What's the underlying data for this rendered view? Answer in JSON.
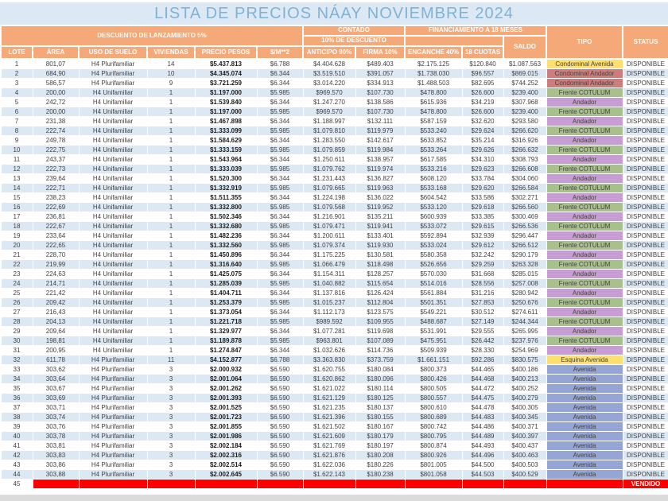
{
  "title": "LISTA DE PRECIOS NÁAY NOVIEMBRE 2024",
  "header": {
    "discount_banner": "DESCUENTO DE LANZAMIENTO 5%",
    "contado": "CONTADO",
    "contado_sub": "10% DE DESCUENTO",
    "financiamiento": "FINANCIAMIENTO A 18 MESES",
    "columns": [
      "LOTE",
      "ÁREA",
      "USO DE SUELO",
      "VIVIENDAS",
      "PRECIO PESOS",
      "$/M**2",
      "ANTICIPO 90%",
      "FIRMA 10%",
      "ENGANCHE 40%",
      "18 CUOTAS",
      "SALDO",
      "TIPO",
      "STATUS"
    ]
  },
  "colors": {
    "header_orange": "#F5A878",
    "band_blue": "#DCE9F5",
    "title_blue": "#7FB2D8",
    "sold_red": "#FF0000"
  },
  "tipo_colors": {
    "Condominal Avenida": "#FFE06E",
    "Condominal Andador": "#CF7C7F",
    "Frente COTULUM": "#A9BF8D",
    "Andador": "#C89DD6",
    "Esquina Avenida": "#FFE06E",
    "Avenida": "#95A5D6"
  },
  "rows": [
    [
      "1",
      "801,07",
      "H4 Plurifamiliar",
      "14",
      "$5.437.813",
      "$6.788",
      "$4.404.628",
      "$489.403",
      "$2.175.125",
      "$120.840",
      "$1.087.563",
      "Condominal Avenida",
      "DISPONIBLE"
    ],
    [
      "2",
      "684,90",
      "H4 Plurifamiliar",
      "10",
      "$4.345.074",
      "$6.344",
      "$3.519.510",
      "$391.057",
      "$1.738.030",
      "$96.557",
      "$869.015",
      "Condominal Andador",
      "DISPONIBLE"
    ],
    [
      "3",
      "586,57",
      "H4 Plurifamiliar",
      "9",
      "$3.721.259",
      "$6.344",
      "$3.014.220",
      "$334.913",
      "$1.488.503",
      "$82.695",
      "$744.252",
      "Condominal Andador",
      "DISPONIBLE"
    ],
    [
      "4",
      "200,00",
      "H4 Unifamiliar",
      "1",
      "$1.197.000",
      "$5.985",
      "$969.570",
      "$107.730",
      "$478.800",
      "$26.600",
      "$239.400",
      "Frente COTULUM",
      "DISPONIBLE"
    ],
    [
      "5",
      "242,72",
      "H4 Unifamiliar",
      "1",
      "$1.539.840",
      "$6.344",
      "$1.247.270",
      "$138.586",
      "$615.936",
      "$34.219",
      "$307.968",
      "Andador",
      "DISPONIBLE"
    ],
    [
      "6",
      "200,00",
      "H4 Unifamiliar",
      "1",
      "$1.197.000",
      "$5.985",
      "$969.570",
      "$107.730",
      "$478.800",
      "$26.600",
      "$239.400",
      "Frente COTULUM",
      "DISPONIBLE"
    ],
    [
      "7",
      "231,38",
      "H4 Unifamiliar",
      "1",
      "$1.467.898",
      "$6.344",
      "$1.188.997",
      "$132.111",
      "$587.159",
      "$32.620",
      "$293.580",
      "Andador",
      "DISPONIBLE"
    ],
    [
      "8",
      "222,74",
      "H4 Unifamiliar",
      "1",
      "$1.333.099",
      "$5.985",
      "$1.079.810",
      "$119.979",
      "$533.240",
      "$29.624",
      "$266.620",
      "Frente COTULUM",
      "DISPONIBLE"
    ],
    [
      "9",
      "249,78",
      "H4 Unifamiliar",
      "1",
      "$1.584.629",
      "$6.344",
      "$1.283.550",
      "$142.617",
      "$633.852",
      "$35.214",
      "$316.926",
      "Andador",
      "DISPONIBLE"
    ],
    [
      "10",
      "222,75",
      "H4 Unifamiliar",
      "1",
      "$1.333.159",
      "$5.985",
      "$1.079.859",
      "$119.984",
      "$533.264",
      "$29.626",
      "$266.632",
      "Frente COTULUM",
      "DISPONIBLE"
    ],
    [
      "11",
      "243,37",
      "H4 Unifamiliar",
      "1",
      "$1.543.964",
      "$6.344",
      "$1.250.611",
      "$138.957",
      "$617.585",
      "$34.310",
      "$308.793",
      "Andador",
      "DISPONIBLE"
    ],
    [
      "12",
      "222,73",
      "H4 Unifamiliar",
      "1",
      "$1.333.039",
      "$5.985",
      "$1.079.762",
      "$119.974",
      "$533.216",
      "$29.623",
      "$266.608",
      "Frente COTULUM",
      "DISPONIBLE"
    ],
    [
      "13",
      "239,64",
      "H4 Unifamiliar",
      "1",
      "$1.520.300",
      "$6.344",
      "$1.231.443",
      "$136.827",
      "$608.120",
      "$33.784",
      "$304.060",
      "Andador",
      "DISPONIBLE"
    ],
    [
      "14",
      "222,71",
      "H4 Unifamiliar",
      "1",
      "$1.332.919",
      "$5.985",
      "$1.079.665",
      "$119.963",
      "$533.168",
      "$29.620",
      "$266.584",
      "Frente COTULUM",
      "DISPONIBLE"
    ],
    [
      "15",
      "238,23",
      "H4 Unifamiliar",
      "1",
      "$1.511.355",
      "$6.344",
      "$1.224.198",
      "$136.022",
      "$604.542",
      "$33.586",
      "$302.271",
      "Andador",
      "DISPONIBLE"
    ],
    [
      "16",
      "222,69",
      "H4 Unifamiliar",
      "1",
      "$1.332.800",
      "$5.985",
      "$1.079.568",
      "$119.952",
      "$533.120",
      "$29.618",
      "$266.560",
      "Frente COTULUM",
      "DISPONIBLE"
    ],
    [
      "17",
      "236,81",
      "H4 Unifamiliar",
      "1",
      "$1.502.346",
      "$6.344",
      "$1.216.901",
      "$135.211",
      "$600.939",
      "$33.385",
      "$300.469",
      "Andador",
      "DISPONIBLE"
    ],
    [
      "18",
      "222,67",
      "H4 Unifamiliar",
      "1",
      "$1.332.680",
      "$5.985",
      "$1.079.471",
      "$119.941",
      "$533.072",
      "$29.615",
      "$266.536",
      "Frente COTULUM",
      "DISPONIBLE"
    ],
    [
      "19",
      "233,64",
      "H4 Unifamiliar",
      "1",
      "$1.482.236",
      "$6.344",
      "$1.200.611",
      "$133.401",
      "$592.894",
      "$32.939",
      "$296.447",
      "Andador",
      "DISPONIBLE"
    ],
    [
      "20",
      "222,65",
      "H4 Unifamiliar",
      "1",
      "$1.332.560",
      "$5.985",
      "$1.079.374",
      "$119.930",
      "$533.024",
      "$29.612",
      "$266.512",
      "Frente COTULUM",
      "DISPONIBLE"
    ],
    [
      "21",
      "228,70",
      "H4 Unifamiliar",
      "1",
      "$1.450.896",
      "$6.344",
      "$1.175.225",
      "$130.581",
      "$580.358",
      "$32.242",
      "$290.179",
      "Andador",
      "DISPONIBLE"
    ],
    [
      "22",
      "219,99",
      "H4 Unifamiliar",
      "1",
      "$1.316.640",
      "$5.985",
      "$1.066.479",
      "$118.498",
      "$526.656",
      "$29.259",
      "$263.328",
      "Frente COTULUM",
      "DISPONIBLE"
    ],
    [
      "23",
      "224,63",
      "H4 Unifamiliar",
      "1",
      "$1.425.075",
      "$6.344",
      "$1.154.311",
      "$128.257",
      "$570.030",
      "$31.668",
      "$285.015",
      "Andador",
      "DISPONIBLE"
    ],
    [
      "24",
      "214,71",
      "H4 Unifamiliar",
      "1",
      "$1.285.039",
      "$5.985",
      "$1.040.882",
      "$115.654",
      "$514.016",
      "$28.556",
      "$257.008",
      "Frente COTULUM",
      "DISPONIBLE"
    ],
    [
      "25",
      "221,42",
      "H4 Unifamiliar",
      "1",
      "$1.404.711",
      "$6.344",
      "$1.137.816",
      "$126.424",
      "$561.884",
      "$31.216",
      "$280.942",
      "Andador",
      "DISPONIBLE"
    ],
    [
      "26",
      "209,42",
      "H4 Unifamiliar",
      "1",
      "$1.253.379",
      "$5.985",
      "$1.015.237",
      "$112.804",
      "$501.351",
      "$27.853",
      "$250.676",
      "Frente COTULUM",
      "DISPONIBLE"
    ],
    [
      "27",
      "216,43",
      "H4 Unifamiliar",
      "1",
      "$1.373.054",
      "$6.344",
      "$1.112.173",
      "$123.575",
      "$549.221",
      "$30.512",
      "$274.611",
      "Andador",
      "DISPONIBLE"
    ],
    [
      "28",
      "204,13",
      "H4 Unifamiliar",
      "1",
      "$1.221.718",
      "$5.985",
      "$989.592",
      "$109.955",
      "$488.687",
      "$27.149",
      "$244.344",
      "Frente COTULUM",
      "DISPONIBLE"
    ],
    [
      "29",
      "209,64",
      "H4 Unifamiliar",
      "1",
      "$1.329.977",
      "$6.344",
      "$1.077.281",
      "$119.698",
      "$531.991",
      "$29.555",
      "$265.995",
      "Andador",
      "DISPONIBLE"
    ],
    [
      "30",
      "198,81",
      "H4 Unifamiliar",
      "1",
      "$1.189.878",
      "$5.985",
      "$963.801",
      "$107.089",
      "$475.951",
      "$26.442",
      "$237.976",
      "Frente COTULUM",
      "DISPONIBLE"
    ],
    [
      "31",
      "200,95",
      "H4 Unifamiliar",
      "1",
      "$1.274.847",
      "$6.344",
      "$1.032.626",
      "$114.736",
      "$509.939",
      "$28.330",
      "$254.969",
      "Andador",
      "DISPONIBLE"
    ],
    [
      "32",
      "611,78",
      "H4 Plurifamiliar",
      "11",
      "$4.152.877",
      "$6.788",
      "$3.363.830",
      "$373.759",
      "$1.661.151",
      "$92.286",
      "$830.575",
      "Esquina Avenida",
      "DISPONIBLE"
    ],
    [
      "33",
      "303,62",
      "H4 Plurifamiliar",
      "3",
      "$2.000.932",
      "$6.590",
      "$1.620.755",
      "$180.084",
      "$800.373",
      "$44.465",
      "$400.186",
      "Avenida",
      "DISPONIBLE"
    ],
    [
      "34",
      "303,64",
      "H4 Plurifamiliar",
      "3",
      "$2.001.064",
      "$6.590",
      "$1.620.862",
      "$180.096",
      "$800.426",
      "$44.468",
      "$400.213",
      "Avenida",
      "DISPONIBLE"
    ],
    [
      "35",
      "303,67",
      "H4 Plurifamiliar",
      "3",
      "$2.001.262",
      "$6.590",
      "$1.621.022",
      "$180.114",
      "$800.505",
      "$44.472",
      "$400.252",
      "Avenida",
      "DISPONIBLE"
    ],
    [
      "36",
      "303,69",
      "H4 Plurifamiliar",
      "3",
      "$2.001.393",
      "$6.590",
      "$1.621.129",
      "$180.125",
      "$800.557",
      "$44.475",
      "$400.279",
      "Avenida",
      "DISPONIBLE"
    ],
    [
      "37",
      "303,71",
      "H4 Plurifamiliar",
      "3",
      "$2.001.525",
      "$6.590",
      "$1.621.235",
      "$180.137",
      "$800.610",
      "$44.478",
      "$400.305",
      "Avenida",
      "DISPONIBLE"
    ],
    [
      "38",
      "303,74",
      "H4 Plurifamiliar",
      "3",
      "$2.001.723",
      "$6.590",
      "$1.621.396",
      "$180.155",
      "$800.689",
      "$44.483",
      "$400.345",
      "Avenida",
      "DISPONIBLE"
    ],
    [
      "39",
      "303,76",
      "H4 Plurifamiliar",
      "3",
      "$2.001.855",
      "$6.590",
      "$1.621.502",
      "$180.167",
      "$800.742",
      "$44.486",
      "$400.371",
      "Avenida",
      "DISPONIBLE"
    ],
    [
      "40",
      "303,78",
      "H4 Plurifamiliar",
      "3",
      "$2.001.986",
      "$6.590",
      "$1.621.609",
      "$180.179",
      "$800.795",
      "$44.489",
      "$400.397",
      "Avenida",
      "DISPONIBLE"
    ],
    [
      "41",
      "303,81",
      "H4 Plurifamiliar",
      "3",
      "$2.002.184",
      "$6.590",
      "$1.621.769",
      "$180.197",
      "$800.874",
      "$44.493",
      "$400.437",
      "Avenida",
      "DISPONIBLE"
    ],
    [
      "42",
      "303,83",
      "H4 Plurifamiliar",
      "3",
      "$2.002.316",
      "$6.590",
      "$1.621.876",
      "$180.208",
      "$800.926",
      "$44.496",
      "$400.463",
      "Avenida",
      "DISPONIBLE"
    ],
    [
      "43",
      "303,86",
      "H4 Plurifamiliar",
      "3",
      "$2.002.514",
      "$6.590",
      "$1.622.036",
      "$180.226",
      "$801.005",
      "$44.500",
      "$400.503",
      "Avenida",
      "DISPONIBLE"
    ],
    [
      "44",
      "303,88",
      "H4 Plurifamiliar",
      "3",
      "$2.002.645",
      "$6.590",
      "$1.622.143",
      "$180.238",
      "$801.058",
      "$44.503",
      "$400.529",
      "Avenida",
      "DISPONIBLE"
    ]
  ],
  "sold_row": {
    "lote": "45",
    "status": "VENDIDO"
  }
}
